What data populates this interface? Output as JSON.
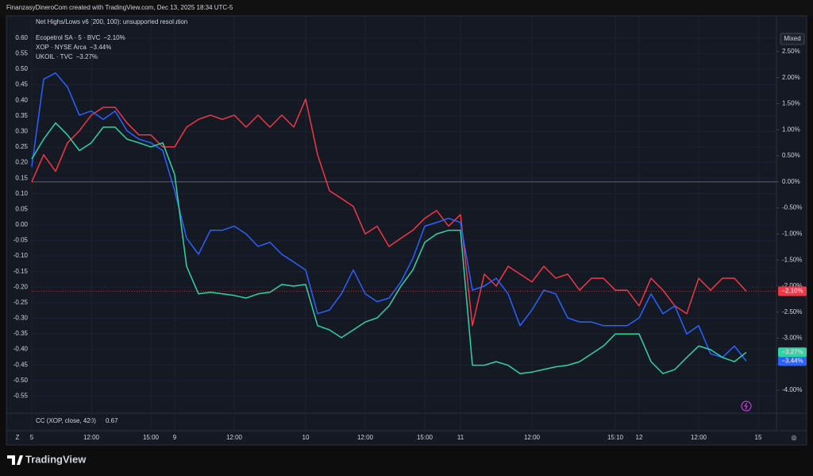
{
  "header": {
    "title": "FinanzasyDineroCom created with TradingView.com, Dec 13, 2025 18:34 UTC-5"
  },
  "footer": {
    "brand": "TradingView"
  },
  "chart_data": {
    "type": "line",
    "indicator": "Net Highs/Lows v6 (200, 100): unsupported resolution",
    "scale_mode": "Mixed",
    "grid": true,
    "categories": [
      "5",
      null,
      null,
      null,
      null,
      "12:00",
      null,
      null,
      null,
      null,
      "15:00",
      null,
      "9",
      null,
      null,
      null,
      null,
      "12:00",
      null,
      null,
      null,
      null,
      null,
      "10",
      null,
      null,
      null,
      null,
      "12:00",
      null,
      null,
      null,
      null,
      "15:00",
      null,
      null,
      "11",
      null,
      null,
      null,
      null,
      null,
      "12:00",
      null,
      null,
      null,
      null,
      null,
      null,
      "15:10",
      null,
      "12",
      null,
      null,
      null,
      null,
      "12:00",
      null,
      null,
      null,
      null,
      "15"
    ],
    "ylim": [
      -0.6,
      0.62
    ],
    "yticks": [
      {
        "value": 0.6,
        "label": "0.60"
      },
      {
        "value": 0.55,
        "label": "0.55"
      },
      {
        "value": 0.5,
        "label": "0.50"
      },
      {
        "value": 0.45,
        "label": "0.45"
      },
      {
        "value": 0.4,
        "label": "0.40"
      },
      {
        "value": 0.35,
        "label": "0.35"
      },
      {
        "value": 0.3,
        "label": "0.30"
      },
      {
        "value": 0.25,
        "label": "0.25"
      },
      {
        "value": 0.2,
        "label": "0.20"
      },
      {
        "value": 0.15,
        "label": "0.15"
      },
      {
        "value": 0.1,
        "label": "0.10"
      },
      {
        "value": 0.05,
        "label": "0.05"
      },
      {
        "value": 0,
        "label": "0.00"
      },
      {
        "value": -0.05,
        "label": "-0.05"
      },
      {
        "value": -0.1,
        "label": "-0.10"
      },
      {
        "value": -0.15,
        "label": "-0.15"
      },
      {
        "value": -0.2,
        "label": "-0.20"
      },
      {
        "value": -0.25,
        "label": "-0.25"
      },
      {
        "value": -0.3,
        "label": "-0.30"
      },
      {
        "value": -0.35,
        "label": "-0.35"
      },
      {
        "value": -0.4,
        "label": "-0.40"
      },
      {
        "value": -0.45,
        "label": "-0.45"
      },
      {
        "value": -0.5,
        "label": "-0.50"
      },
      {
        "value": -0.55,
        "label": "-0.55"
      }
    ],
    "y2lim": [
      -4.41,
      2.88
    ],
    "y2ticks": [
      {
        "value": 2.5,
        "label": "2.50%"
      },
      {
        "value": 2,
        "label": "2.00%"
      },
      {
        "value": 1.5,
        "label": "1.50%"
      },
      {
        "value": 1,
        "label": "1.00%"
      },
      {
        "value": 0.5,
        "label": "0.50%"
      },
      {
        "value": 0,
        "label": "0.00%"
      },
      {
        "value": -0.5,
        "label": "-0.50%"
      },
      {
        "value": -1,
        "label": "-1.00%"
      },
      {
        "value": -1.5,
        "label": "-1.50%"
      },
      {
        "value": -2,
        "label": "-2.00%"
      },
      {
        "value": -2.5,
        "label": "-2.50%"
      },
      {
        "value": -3,
        "label": "-3.00%"
      },
      {
        "value": -3.5,
        "label": "-3.50%"
      },
      {
        "value": -4,
        "label": "-4.00%"
      }
    ],
    "series": [
      {
        "name": "Ecopetrol SA · 5 · BVC",
        "change_label": "−2.10%",
        "color": "#f23645",
        "axis": "y2",
        "values": [
          0,
          0.52,
          0.2,
          0.75,
          0.98,
          1.28,
          1.43,
          1.43,
          1.13,
          0.9,
          0.9,
          0.67,
          0.67,
          1.05,
          1.2,
          1.28,
          1.2,
          1.28,
          1.05,
          1.28,
          1.05,
          1.28,
          1.05,
          1.59,
          0.52,
          -0.17,
          -0.32,
          -0.47,
          -1.0,
          -0.85,
          -1.24,
          -1.08,
          -0.93,
          -0.7,
          -0.55,
          -0.85,
          -0.63,
          -2.76,
          -1.77,
          -2.0,
          -1.62,
          -1.77,
          -1.92,
          -1.62,
          -1.85,
          -1.77,
          -2.08,
          -1.85,
          -1.85,
          -2.08,
          -2.08,
          -2.38,
          -1.85,
          -2.08,
          -2.38,
          -2.53,
          -1.85,
          -2.08,
          -1.85,
          -1.85,
          -2.1,
          null
        ]
      },
      {
        "name": "XOP · NYSE Arca",
        "change_label": "−3.44%",
        "color": "#2962ff",
        "axis": "y2",
        "values": [
          0.29,
          1.97,
          2.09,
          1.82,
          1.28,
          1.36,
          1.2,
          1.36,
          0.98,
          0.82,
          0.75,
          0.6,
          -0.17,
          -1.08,
          -1.39,
          -0.93,
          -0.93,
          -0.85,
          -1.0,
          -1.24,
          -1.16,
          -1.39,
          -1.54,
          -1.69,
          -2.53,
          -2.46,
          -2.15,
          -1.69,
          -2.15,
          -2.3,
          -2.23,
          -1.92,
          -1.47,
          -0.85,
          -0.78,
          -0.7,
          -0.78,
          -2.08,
          -2.0,
          -1.85,
          -2.15,
          -2.76,
          -2.46,
          -2.08,
          -2.15,
          -2.61,
          -2.69,
          -2.69,
          -2.76,
          -2.76,
          -2.76,
          -2.61,
          -2.15,
          -2.53,
          -2.38,
          -2.92,
          -2.76,
          -3.3,
          -3.37,
          -3.15,
          -3.44,
          null
        ]
      },
      {
        "name": "UKOIL · TVC",
        "change_label": "−3.27%",
        "color": "#2fd3a4",
        "axis": "y2",
        "values": [
          0.44,
          0.82,
          1.13,
          0.9,
          0.6,
          0.75,
          1.05,
          1.05,
          0.82,
          0.75,
          0.67,
          0.75,
          0.14,
          -1.62,
          -2.15,
          -2.12,
          -2.15,
          -2.18,
          -2.23,
          -2.15,
          -2.12,
          -1.97,
          -2.0,
          -1.97,
          -2.76,
          -2.84,
          -2.99,
          -2.84,
          -2.69,
          -2.61,
          -2.38,
          -2.0,
          -1.69,
          -1.16,
          -1.0,
          -0.93,
          -0.93,
          -3.52,
          -3.52,
          -3.45,
          -3.52,
          -3.68,
          -3.65,
          -3.6,
          -3.55,
          -3.52,
          -3.45,
          -3.3,
          -3.15,
          -2.92,
          -2.92,
          -2.92,
          -3.45,
          -3.68,
          -3.6,
          -3.37,
          -3.15,
          -3.22,
          -3.37,
          -3.45,
          -3.27,
          null
        ]
      }
    ],
    "pane": {
      "label": "CC (XOP, close, 420)",
      "value_label": "0.67"
    }
  }
}
